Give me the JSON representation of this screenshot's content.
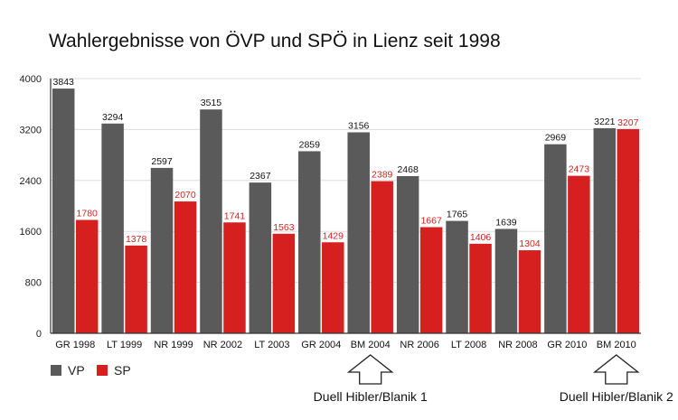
{
  "chart_data": {
    "type": "bar",
    "title": "Wahlergebnisse von ÖVP und SPÖ in Lienz seit 1998",
    "xlabel": "",
    "ylabel": "",
    "ylim": [
      0,
      4000
    ],
    "yticks": [
      "0",
      "800",
      "1600",
      "2400",
      "3200",
      "4000"
    ],
    "grid": true,
    "legend_position": "bottom-left",
    "categories": [
      "GR 1998",
      "LT 1999",
      "NR 1999",
      "NR 2002",
      "LT 2003",
      "GR 2004",
      "BM 2004",
      "NR 2006",
      "LT 2008",
      "NR 2008",
      "GR 2010",
      "BM 2010"
    ],
    "series": [
      {
        "name": "VP",
        "color": "#5a5a5a",
        "label_color": "#111111",
        "values": [
          3843,
          3294,
          2597,
          3515,
          2367,
          2859,
          3156,
          2468,
          1765,
          1639,
          2969,
          3221
        ],
        "labels": [
          "3843",
          "3294",
          "2597",
          "3515",
          "2367",
          "2859",
          "3156",
          "2468",
          "1765",
          "1639",
          "2969",
          "3221"
        ]
      },
      {
        "name": "SP",
        "color": "#d6201f",
        "label_color": "#d6201f",
        "values": [
          1780,
          1378,
          2070,
          1741,
          1563,
          1429,
          2389,
          1667,
          1406,
          1304,
          2473,
          3207
        ],
        "labels": [
          "1780",
          "1378",
          "2070",
          "1741",
          "1563",
          "1429",
          "2389",
          "1667",
          "1406",
          "1304",
          "2473",
          "3207"
        ]
      }
    ],
    "annotations": [
      {
        "category": "BM 2004",
        "text": "Duell Hibler/Blanik 1"
      },
      {
        "category": "BM 2010",
        "text": "Duell Hibler/Blanik 2"
      }
    ]
  },
  "colors": {
    "axis": "#333333",
    "grid": "#dddddd",
    "arrow_stroke": "#222222"
  }
}
